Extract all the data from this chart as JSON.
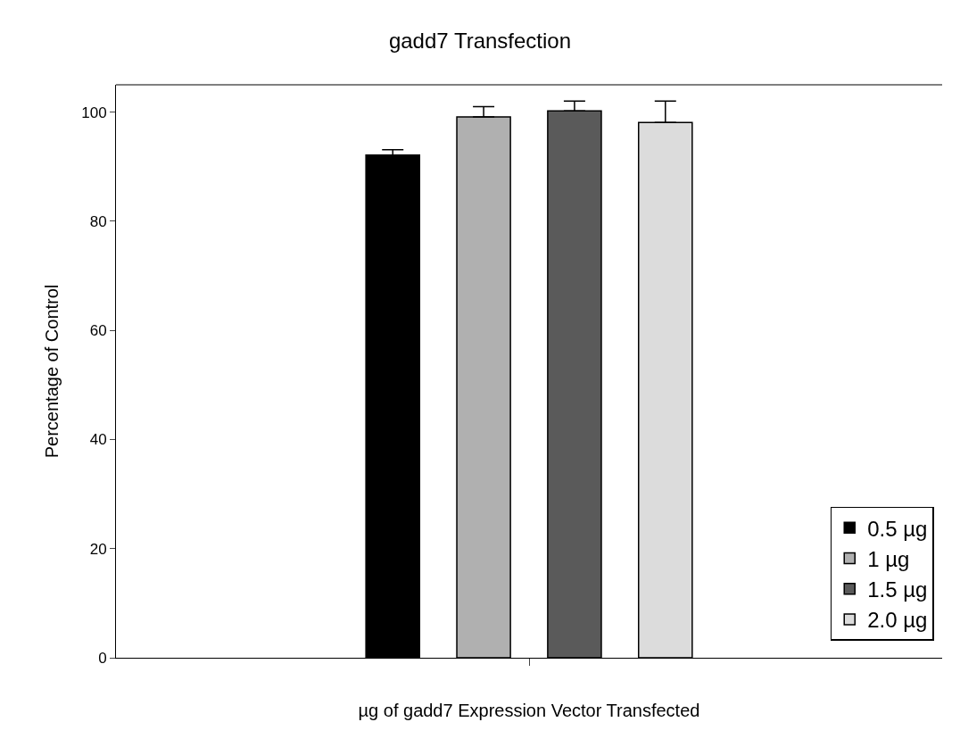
{
  "chart_data": {
    "type": "bar",
    "title": "gadd7 Transfection",
    "xlabel": "µg of gadd7 Expression Vector Transfected",
    "ylabel": "Percentage of Control",
    "categories": [
      null
    ],
    "series": [
      {
        "name": "0.5 µg",
        "color": "#000000",
        "values": [
          92.1
        ],
        "errors": [
          [
            92.1,
            93.1
          ]
        ]
      },
      {
        "name": "1 µg",
        "color": "#b0b0b0",
        "values": [
          99.1
        ],
        "errors": [
          [
            99.1,
            101
          ]
        ]
      },
      {
        "name": "1.5 µg",
        "color": "#5a5a5a",
        "values": [
          100.2
        ],
        "errors": [
          [
            100.2,
            102
          ]
        ]
      },
      {
        "name": "2.0 µg",
        "color": "#dcdcdc",
        "values": [
          98.1
        ],
        "errors": [
          [
            98.1,
            102
          ]
        ]
      }
    ],
    "ylim": [
      0,
      105
    ],
    "yticks": [
      0,
      20,
      40,
      60,
      80,
      100
    ],
    "grid": false,
    "legend": "bottom right"
  }
}
